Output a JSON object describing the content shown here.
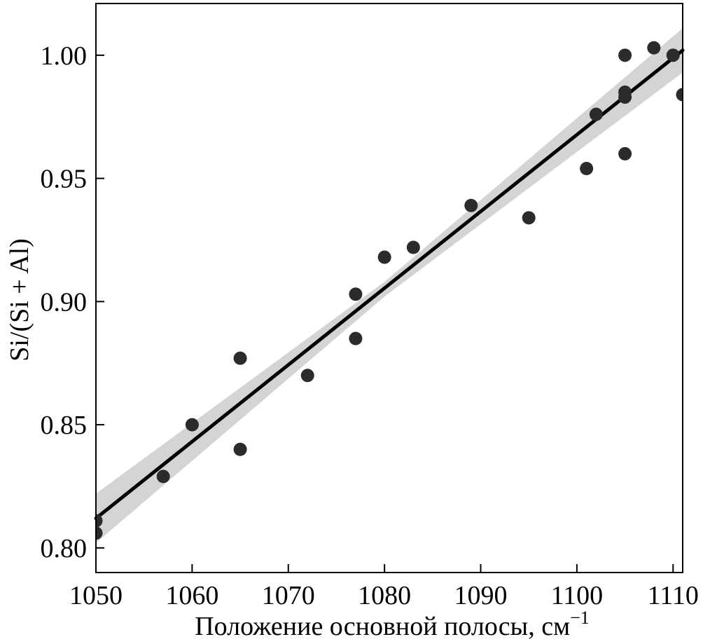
{
  "chart_data": {
    "type": "scatter",
    "title": "",
    "xlabel": "Положение основной полосы, см",
    "xlabel_superscript": "−1",
    "ylabel": "Si/(Si + Al)",
    "xlim": [
      1050,
      1111
    ],
    "ylim": [
      0.79,
      1.021
    ],
    "x_ticks": [
      1050,
      1060,
      1070,
      1080,
      1090,
      1100,
      1110
    ],
    "y_ticks": [
      0.8,
      0.85,
      0.9,
      0.95,
      1.0
    ],
    "y_tick_labels": [
      "0.80",
      "0.85",
      "0.90",
      "0.95",
      "1.00"
    ],
    "grid": false,
    "legend": "none",
    "colors": {
      "points": "#2b2b2b",
      "line": "#000000",
      "band": "#d4d4d4"
    },
    "points": [
      {
        "x": 1050,
        "y": 0.806
      },
      {
        "x": 1050,
        "y": 0.811
      },
      {
        "x": 1057,
        "y": 0.829
      },
      {
        "x": 1060,
        "y": 0.85
      },
      {
        "x": 1065,
        "y": 0.84
      },
      {
        "x": 1065,
        "y": 0.877
      },
      {
        "x": 1072,
        "y": 0.87
      },
      {
        "x": 1077,
        "y": 0.885
      },
      {
        "x": 1077,
        "y": 0.903
      },
      {
        "x": 1080,
        "y": 0.918
      },
      {
        "x": 1083,
        "y": 0.922
      },
      {
        "x": 1089,
        "y": 0.939
      },
      {
        "x": 1095,
        "y": 0.934
      },
      {
        "x": 1101,
        "y": 0.954
      },
      {
        "x": 1102,
        "y": 0.976
      },
      {
        "x": 1105,
        "y": 0.96
      },
      {
        "x": 1105,
        "y": 0.983
      },
      {
        "x": 1105,
        "y": 0.985
      },
      {
        "x": 1105,
        "y": 1.0
      },
      {
        "x": 1108,
        "y": 1.003
      },
      {
        "x": 1110,
        "y": 1.0
      },
      {
        "x": 1111,
        "y": 0.984
      }
    ],
    "fit_line": [
      {
        "x": 1050,
        "y": 0.812
      },
      {
        "x": 1111,
        "y": 1.002
      }
    ],
    "confidence_band_upper": [
      {
        "x": 1050,
        "y": 0.822
      },
      {
        "x": 1080,
        "y": 0.908
      },
      {
        "x": 1111,
        "y": 1.011
      }
    ],
    "confidence_band_lower": [
      {
        "x": 1050,
        "y": 0.802
      },
      {
        "x": 1080,
        "y": 0.902
      },
      {
        "x": 1111,
        "y": 0.993
      }
    ]
  }
}
